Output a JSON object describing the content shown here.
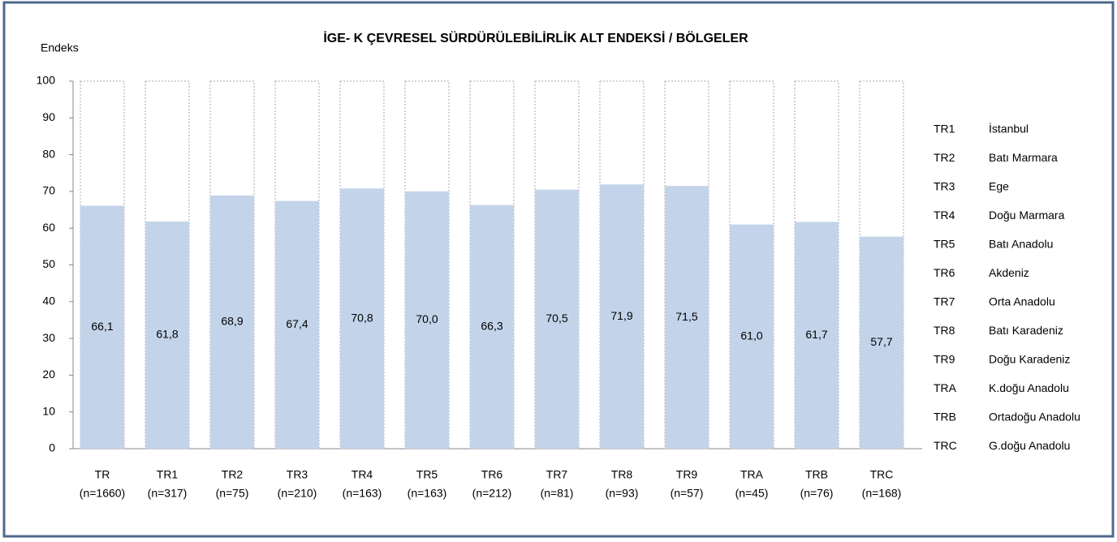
{
  "chart_data": {
    "type": "bar",
    "title": "İGE- K  ÇEVRESEL SÜRDÜRÜLEBİLİRLİK ALT ENDEKSİ / BÖLGELER",
    "y_label": "Endeks",
    "categories": [
      "TR",
      "TR1",
      "TR2",
      "TR3",
      "TR4",
      "TR5",
      "TR6",
      "TR7",
      "TR8",
      "TR9",
      "TRA",
      "TRB",
      "TRC"
    ],
    "sample_sizes": [
      "(n=1660)",
      "(n=317)",
      "(n=75)",
      "(n=210)",
      "(n=163)",
      "(n=163)",
      "(n=212)",
      "(n=81)",
      "(n=93)",
      "(n=57)",
      "(n=45)",
      "(n=76)",
      "(n=168)"
    ],
    "values": [
      66.1,
      61.8,
      68.9,
      67.4,
      70.8,
      70.0,
      66.3,
      70.5,
      71.9,
      71.5,
      61.0,
      61.7,
      57.7
    ],
    "value_labels": [
      "66,1",
      "61,8",
      "68,9",
      "67,4",
      "70,8",
      "70,0",
      "66,3",
      "70,5",
      "71,9",
      "71,5",
      "61,0",
      "61,7",
      "57,7"
    ],
    "color": "#c3d4ea",
    "ylim": [
      0,
      100
    ],
    "yticks": [
      0,
      10,
      20,
      30,
      40,
      50,
      60,
      70,
      80,
      90,
      100
    ],
    "regions": [
      {
        "code": "TR1",
        "name": "İstanbul"
      },
      {
        "code": "TR2",
        "name": "Batı Marmara"
      },
      {
        "code": "TR3",
        "name": "Ege"
      },
      {
        "code": "TR4",
        "name": "Doğu Marmara"
      },
      {
        "code": "TR5",
        "name": "Batı Anadolu"
      },
      {
        "code": "TR6",
        "name": "Akdeniz"
      },
      {
        "code": "TR7",
        "name": "Orta Anadolu"
      },
      {
        "code": "TR8",
        "name": "Batı Karadeniz"
      },
      {
        "code": "TR9",
        "name": "Doğu Karadeniz"
      },
      {
        "code": "TRA",
        "name": "K.doğu Anadolu"
      },
      {
        "code": "TRB",
        "name": "Ortadoğu Anadolu"
      },
      {
        "code": "TRC",
        "name": "G.doğu Anadolu"
      }
    ]
  }
}
